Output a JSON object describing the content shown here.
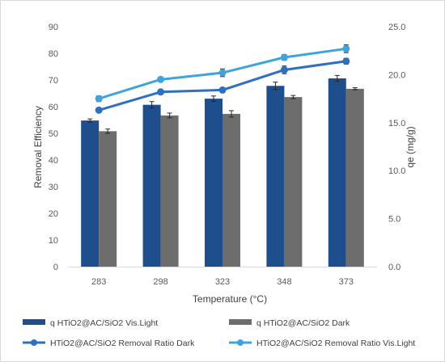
{
  "chart_data": {
    "type": "bar",
    "categories": [
      "283",
      "298",
      "323",
      "348",
      "373"
    ],
    "xlabel": "Temperature (°C)",
    "ylabel_left": "Removal Efficiency",
    "ylabel_right": "qe (mg/g)",
    "ylim_left": [
      0,
      90
    ],
    "ylim_right": [
      0,
      25
    ],
    "yticks_left": [
      "0",
      "10",
      "20",
      "30",
      "40",
      "50",
      "60",
      "70",
      "80",
      "90"
    ],
    "yticks_right": [
      "0.0",
      "5.0",
      "10.0",
      "15.0",
      "20.0",
      "25.0"
    ],
    "grid": false,
    "legend_position": "bottom",
    "bar_series": [
      {
        "name": "q HTiO2@AC/SiO2 Vis.Light",
        "color": "#1f4e8c",
        "axis": "left",
        "values": [
          54.8,
          60.7,
          63.0,
          67.8,
          70.6
        ],
        "errors": [
          0.6,
          1.2,
          1.0,
          1.4,
          1.1
        ]
      },
      {
        "name": "q HTiO2@AC/SiO2 Dark",
        "color": "#6d6d6d",
        "axis": "left",
        "values": [
          50.8,
          56.7,
          57.3,
          63.6,
          66.7
        ],
        "errors": [
          0.8,
          0.9,
          1.2,
          0.6,
          0.4
        ]
      }
    ],
    "line_series": [
      {
        "name": "HTiO2@AC/SiO2 Removal Ratio Dark",
        "color": "#2f6fbf",
        "axis": "right",
        "values": [
          16.3,
          18.2,
          18.4,
          20.5,
          21.4
        ],
        "errors": [
          0.0,
          0.0,
          0.0,
          0.4,
          0.3
        ]
      },
      {
        "name": "HTiO2@AC/SiO2 Removal Ratio Vis.Light",
        "color": "#3fa4dc",
        "axis": "right",
        "values": [
          17.5,
          19.5,
          20.2,
          21.8,
          22.7
        ],
        "errors": [
          0.3,
          0.0,
          0.4,
          0.3,
          0.4
        ]
      }
    ]
  }
}
